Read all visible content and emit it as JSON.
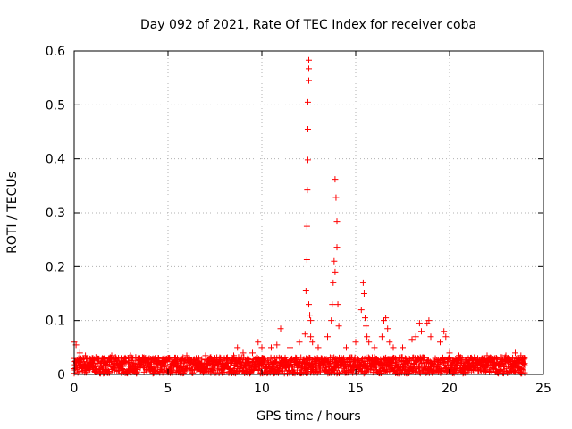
{
  "chart_data": {
    "type": "scatter",
    "title": "Day 092 of 2021, Rate Of TEC Index for receiver coba",
    "xlabel": "GPS time / hours",
    "ylabel": "ROTI / TECUs",
    "xlim": [
      0,
      25
    ],
    "ylim": [
      0,
      0.6
    ],
    "x_ticks": [
      0,
      5,
      10,
      15,
      20,
      25
    ],
    "y_ticks": [
      0,
      0.1,
      0.2,
      0.3,
      0.4,
      0.5,
      0.6
    ],
    "x_tick_labels": [
      "0",
      "5",
      "10",
      "15",
      "20",
      "25"
    ],
    "y_tick_labels": [
      "0",
      "0.1",
      "0.2",
      "0.3",
      "0.4",
      "0.5",
      "0.6"
    ],
    "grid": true,
    "marker": "plus",
    "series_color": "#ff0000",
    "series": [
      {
        "x": [
          0.0,
          0.1,
          0.3,
          0.6,
          1.0,
          1.5,
          2.0,
          2.5,
          3.0,
          3.5,
          4.0,
          4.5,
          5.0,
          5.5,
          6.0,
          6.5,
          7.0,
          7.5,
          8.0,
          8.5,
          8.7,
          9.0,
          9.5,
          9.8,
          10.0,
          10.5,
          10.8,
          11.0,
          11.5,
          12.0,
          12.3,
          12.35,
          12.4,
          12.4,
          12.42,
          12.45,
          12.45,
          12.45,
          12.5,
          12.5,
          12.5,
          12.5,
          12.55,
          12.6,
          12.6,
          12.7,
          13.0,
          13.5,
          13.7,
          13.75,
          13.8,
          13.85,
          13.9,
          13.9,
          13.95,
          14.0,
          14.0,
          14.05,
          14.1,
          14.5,
          15.0,
          15.3,
          15.4,
          15.45,
          15.5,
          15.55,
          15.6,
          15.7,
          16.0,
          16.4,
          16.5,
          16.6,
          16.7,
          16.8,
          17.0,
          17.5,
          18.0,
          18.2,
          18.4,
          18.5,
          18.8,
          18.9,
          19.0,
          19.5,
          19.7,
          19.8,
          20.0,
          20.5,
          21.0,
          21.5,
          22.0,
          22.5,
          23.0,
          23.5,
          23.8,
          24.0
        ],
        "y": [
          0.06,
          0.055,
          0.04,
          0.035,
          0.03,
          0.03,
          0.035,
          0.03,
          0.035,
          0.03,
          0.03,
          0.03,
          0.03,
          0.03,
          0.035,
          0.03,
          0.035,
          0.03,
          0.03,
          0.035,
          0.05,
          0.04,
          0.04,
          0.06,
          0.05,
          0.05,
          0.055,
          0.085,
          0.05,
          0.06,
          0.075,
          0.155,
          0.213,
          0.275,
          0.342,
          0.398,
          0.455,
          0.505,
          0.545,
          0.567,
          0.583,
          0.13,
          0.11,
          0.1,
          0.07,
          0.06,
          0.05,
          0.07,
          0.1,
          0.13,
          0.17,
          0.21,
          0.19,
          0.362,
          0.328,
          0.284,
          0.236,
          0.13,
          0.09,
          0.05,
          0.06,
          0.12,
          0.17,
          0.15,
          0.105,
          0.09,
          0.07,
          0.06,
          0.05,
          0.07,
          0.1,
          0.105,
          0.085,
          0.06,
          0.05,
          0.05,
          0.065,
          0.07,
          0.095,
          0.08,
          0.095,
          0.1,
          0.07,
          0.06,
          0.08,
          0.07,
          0.04,
          0.035,
          0.03,
          0.03,
          0.035,
          0.03,
          0.035,
          0.04,
          0.035,
          0.03
        ]
      }
    ]
  }
}
